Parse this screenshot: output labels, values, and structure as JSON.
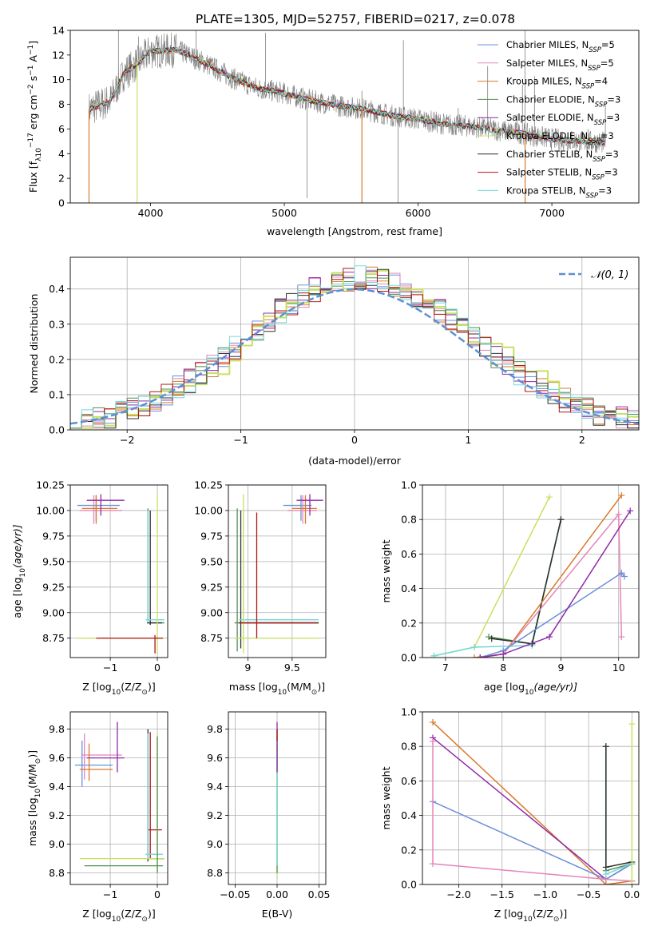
{
  "title": "PLATE=1305, MJD=52757, FIBERID=0217, z=0.078",
  "colors": {
    "chab_miles": "#6a8fd8",
    "salp_miles": "#e585b8",
    "krou_miles": "#d97a2a",
    "chab_elodie": "#4f8f4f",
    "salp_elodie": "#8e2aa8",
    "krou_elodie": "#c8e063",
    "chab_stelib": "#2f2f2f",
    "salp_stelib": "#b01515",
    "krou_stelib": "#72d8d8",
    "obs": "#808080",
    "normal": "#5b8fd6"
  },
  "legend_labels": [
    {
      "text": "Chabrier MILES, N",
      "sub": "SSP",
      "tail": "=5"
    },
    {
      "text": "Salpeter MILES, N",
      "sub": "SSP",
      "tail": "=5"
    },
    {
      "text": "Kroupa MILES, N",
      "sub": "SSP",
      "tail": "=4"
    },
    {
      "text": "Chabrier ELODIE, N",
      "sub": "SSP",
      "tail": "=3"
    },
    {
      "text": "Salpeter ELODIE, N",
      "sub": "SSP",
      "tail": "=3"
    },
    {
      "text": "Kroupa ELODIE, N",
      "sub": "SSP",
      "tail": "=3"
    },
    {
      "text": "Chabrier STELIB, N",
      "sub": "SSP",
      "tail": "=3"
    },
    {
      "text": "Salpeter STELIB, N",
      "sub": "SSP",
      "tail": "=3"
    },
    {
      "text": "Kroupa STELIB, N",
      "sub": "SSP",
      "tail": "=3"
    }
  ],
  "normal_legend": "𝒩(0, 1)",
  "chart_data": [
    {
      "id": "spectrum",
      "type": "line",
      "xlabel": "wavelength [Angstrom, rest frame]",
      "ylabel": {
        "a": "Flux [f",
        "b": "λ",
        "c": "10",
        "d": "−17",
        "e": " erg cm",
        "f": "−2",
        "g": " s",
        "h": "−1",
        "i": " A",
        "j": "−1",
        "k": "]"
      },
      "xlim": [
        3400,
        7650
      ],
      "ylim": [
        0,
        14
      ],
      "xticks": [
        4000,
        5000,
        6000,
        7000
      ],
      "yticks": [
        0,
        2,
        4,
        6,
        8,
        10,
        12,
        14
      ],
      "continuum": [
        [
          3540,
          7.6
        ],
        [
          3700,
          8.3
        ],
        [
          3800,
          10.5
        ],
        [
          3900,
          11.3
        ],
        [
          4000,
          12.3
        ],
        [
          4200,
          12.4
        ],
        [
          4400,
          11.4
        ],
        [
          4600,
          10.2
        ],
        [
          4800,
          9.3
        ],
        [
          5000,
          8.9
        ],
        [
          5200,
          8.3
        ],
        [
          5400,
          7.9
        ],
        [
          5600,
          7.6
        ],
        [
          5800,
          7.1
        ],
        [
          6000,
          6.8
        ],
        [
          6200,
          6.4
        ],
        [
          6400,
          6.2
        ],
        [
          6600,
          5.9
        ],
        [
          6800,
          5.6
        ],
        [
          7000,
          5.2
        ],
        [
          7200,
          5.0
        ],
        [
          7400,
          4.9
        ]
      ],
      "noise_amp": 0.9,
      "spikes": [
        [
          3760,
          14
        ],
        [
          3910,
          13.5
        ],
        [
          4100,
          13.1
        ],
        [
          4240,
          12.2
        ],
        [
          4340,
          14
        ],
        [
          4860,
          13.8
        ],
        [
          5170,
          0.4
        ],
        [
          5580,
          9.1
        ],
        [
          5850,
          0
        ],
        [
          5890,
          13.2
        ],
        [
          6300,
          7.7
        ],
        [
          6520,
          11.1
        ],
        [
          6740,
          7.2
        ],
        [
          6780,
          9.6
        ],
        [
          6800,
          14
        ],
        [
          6870,
          10.3
        ],
        [
          7200,
          5.2
        ],
        [
          7270,
          6.0
        ],
        [
          7400,
          8.1
        ]
      ],
      "model_drops": [
        [
          3540,
          "krou_miles"
        ],
        [
          3900,
          "krou_elodie"
        ],
        [
          5580,
          "krou_miles"
        ],
        [
          6800,
          "krou_miles"
        ]
      ]
    },
    {
      "id": "residuals",
      "type": "histogram",
      "xlabel": "(data-model)/error",
      "ylabel": "Normed distribution",
      "xlim": [
        -2.5,
        2.5
      ],
      "ylim": [
        0,
        0.49
      ],
      "xticks": [
        -2,
        -1,
        0,
        1,
        2
      ],
      "yticks": [
        0.0,
        0.1,
        0.2,
        0.3,
        0.4
      ],
      "bin_width": 0.1
    },
    {
      "id": "age_vs_Z",
      "type": "errorbar",
      "xlabel": {
        "a": "Z [log",
        "b": "10",
        "c": "(Z/Z",
        "d": "⊙",
        "e": ")]"
      },
      "ylabel": {
        "a": "age  [log",
        "b": "10",
        "c": "(age/yr)]"
      },
      "xlim": [
        -1.85,
        0.22
      ],
      "ylim": [
        8.56,
        10.25
      ],
      "xticks": [
        -1,
        0
      ],
      "yticks": [
        8.75,
        9.0,
        9.25,
        9.5,
        9.75,
        10.0,
        10.25
      ],
      "ytick_labels": [
        "8.75",
        "9.00",
        "9.25",
        "9.50",
        "9.75",
        "10.00",
        "10.25"
      ],
      "points": [
        {
          "c": "chab_miles",
          "x": -1.3,
          "y": 10.05,
          "xe": [
            -1.7,
            -0.8
          ],
          "ye": [
            9.9,
            10.15
          ]
        },
        {
          "c": "salp_miles",
          "x": -1.35,
          "y": 10.0,
          "xe": [
            -1.65,
            -0.75
          ],
          "ye": [
            9.87,
            10.15
          ]
        },
        {
          "c": "krou_miles",
          "x": -1.3,
          "y": 10.02,
          "xe": [
            -1.6,
            -0.85
          ],
          "ye": [
            9.87,
            10.15
          ]
        },
        {
          "c": "salp_elodie",
          "x": -1.2,
          "y": 10.1,
          "xe": [
            -1.5,
            -0.7
          ],
          "ye": [
            9.95,
            10.16
          ]
        },
        {
          "c": "chab_elodie",
          "x": -0.2,
          "y": 8.9,
          "xe": [
            -0.22,
            0.15
          ],
          "ye": [
            8.9,
            10.02
          ]
        },
        {
          "c": "chab_stelib",
          "x": -0.15,
          "y": 8.9,
          "xe": [
            -0.22,
            0.1
          ],
          "ye": [
            8.88,
            10.0
          ]
        },
        {
          "c": "krou_stelib",
          "x": -0.2,
          "y": 8.93,
          "xe": [
            -0.25,
            0.15
          ],
          "ye": [
            8.9,
            10.0
          ]
        },
        {
          "c": "krou_elodie",
          "x": 0.0,
          "y": 8.75,
          "xe": [
            -1.7,
            0.15
          ],
          "ye": [
            8.6,
            10.16
          ]
        },
        {
          "c": "salp_stelib",
          "x": -0.05,
          "y": 8.75,
          "xe": [
            -1.3,
            0.12
          ],
          "ye": [
            8.6,
            8.78
          ]
        }
      ]
    },
    {
      "id": "age_vs_mass",
      "type": "errorbar",
      "xlabel": {
        "a": "mass [log",
        "b": "10",
        "c": "(M/M",
        "d": "⊙",
        "e": ")]"
      },
      "xlim": [
        8.78,
        9.88
      ],
      "ylim": [
        8.56,
        10.25
      ],
      "xticks": [
        9.0,
        9.5
      ],
      "yticks": [
        8.75,
        9.0,
        9.25,
        9.5,
        9.75,
        10.0,
        10.25
      ],
      "ytick_labels": [
        "8.75",
        "9.00",
        "9.25",
        "9.50",
        "9.75",
        "10.00",
        "10.25"
      ],
      "points": [
        {
          "c": "chab_miles",
          "x": 9.6,
          "y": 10.05,
          "xe": [
            9.4,
            9.72
          ],
          "ye": [
            9.9,
            10.15
          ]
        },
        {
          "c": "salp_miles",
          "x": 9.62,
          "y": 10.0,
          "xe": [
            9.45,
            9.78
          ],
          "ye": [
            9.87,
            10.15
          ]
        },
        {
          "c": "krou_miles",
          "x": 9.65,
          "y": 10.02,
          "xe": [
            9.5,
            9.78
          ],
          "ye": [
            9.87,
            10.15
          ]
        },
        {
          "c": "salp_elodie",
          "x": 9.7,
          "y": 10.1,
          "xe": [
            9.55,
            9.85
          ],
          "ye": [
            9.95,
            10.16
          ]
        },
        {
          "c": "chab_elodie",
          "x": 8.88,
          "y": 8.9,
          "xe": [
            8.85,
            9.8
          ],
          "ye": [
            8.62,
            10.02
          ]
        },
        {
          "c": "chab_stelib",
          "x": 8.92,
          "y": 8.9,
          "xe": [
            8.9,
            9.8
          ],
          "ye": [
            8.65,
            10.0
          ]
        },
        {
          "c": "krou_stelib",
          "x": 8.95,
          "y": 8.93,
          "xe": [
            8.9,
            9.8
          ],
          "ye": [
            8.7,
            10.0
          ]
        },
        {
          "c": "krou_elodie",
          "x": 8.95,
          "y": 8.75,
          "xe": [
            8.85,
            9.8
          ],
          "ye": [
            8.6,
            10.16
          ]
        },
        {
          "c": "salp_stelib",
          "x": 9.1,
          "y": 8.9,
          "xe": [
            8.9,
            9.78
          ],
          "ye": [
            8.75,
            9.98
          ]
        }
      ]
    },
    {
      "id": "weight_vs_age",
      "type": "line",
      "xlabel": {
        "a": "age  [log",
        "b": "10",
        "c": "(age/yr)]"
      },
      "ylabel": "mass weight",
      "xlim": [
        6.6,
        10.35
      ],
      "ylim": [
        0,
        1
      ],
      "xticks": [
        7,
        8,
        9,
        10
      ],
      "yticks": [
        0.0,
        0.2,
        0.4,
        0.6,
        0.8,
        1.0
      ],
      "series": [
        {
          "c": "krou_elodie",
          "x": [
            6.8,
            7.5,
            8.8
          ],
          "y": [
            0.01,
            0.06,
            0.93
          ]
        },
        {
          "c": "krou_stelib",
          "x": [
            6.8,
            7.5,
            8.5,
            9.0
          ],
          "y": [
            0.01,
            0.06,
            0.07,
            0.8
          ]
        },
        {
          "c": "chab_elodie",
          "x": [
            7.75,
            8.5,
            9.0
          ],
          "y": [
            0.12,
            0.08,
            0.8
          ]
        },
        {
          "c": "chab_stelib",
          "x": [
            7.8,
            8.5,
            9.0
          ],
          "y": [
            0.11,
            0.08,
            0.8
          ]
        },
        {
          "c": "krou_miles",
          "x": [
            7.5,
            8.0,
            10.05
          ],
          "y": [
            0.0,
            0.02,
            0.94
          ]
        },
        {
          "c": "salp_miles",
          "x": [
            7.6,
            8.0,
            10.0,
            10.05
          ],
          "y": [
            0.0,
            0.02,
            0.83,
            0.12
          ]
        },
        {
          "c": "chab_miles",
          "x": [
            7.6,
            8.0,
            10.05,
            10.1
          ],
          "y": [
            0.0,
            0.04,
            0.49,
            0.47
          ]
        },
        {
          "c": "salp_elodie",
          "x": [
            7.6,
            8.0,
            8.8,
            10.2
          ],
          "y": [
            0.0,
            0.02,
            0.12,
            0.85
          ]
        }
      ]
    },
    {
      "id": "mass_vs_Z",
      "type": "errorbar",
      "xlabel": {
        "a": "Z [log",
        "b": "10",
        "c": "(Z/Z",
        "d": "⊙",
        "e": ")]"
      },
      "ylabel": {
        "a": "mass [log",
        "b": "10",
        "c": "(M/M",
        "d": "⊙",
        "e": ")]"
      },
      "xlim": [
        -1.85,
        0.22
      ],
      "ylim": [
        8.72,
        9.92
      ],
      "xticks": [
        -1,
        0
      ],
      "yticks": [
        8.8,
        9.0,
        9.2,
        9.4,
        9.6,
        9.8
      ],
      "ytick_labels": [
        "8.8",
        "9.0",
        "9.2",
        "9.4",
        "9.6",
        "9.8"
      ],
      "points": [
        {
          "c": "chab_miles",
          "x": -1.6,
          "y": 9.55,
          "xe": [
            -1.75,
            -0.95
          ],
          "ye": [
            9.4,
            9.72
          ]
        },
        {
          "c": "salp_miles",
          "x": -1.55,
          "y": 9.62,
          "xe": [
            -1.6,
            -0.75
          ],
          "ye": [
            9.45,
            9.77
          ]
        },
        {
          "c": "krou_miles",
          "x": -1.45,
          "y": 9.52,
          "xe": [
            -1.65,
            -0.95
          ],
          "ye": [
            9.44,
            9.7
          ]
        },
        {
          "c": "salp_elodie",
          "x": -0.85,
          "y": 9.6,
          "xe": [
            -1.5,
            -0.7
          ],
          "ye": [
            9.5,
            9.85
          ]
        },
        {
          "c": "salp_stelib",
          "x": -0.15,
          "y": 9.1,
          "xe": [
            -0.2,
            0.1
          ],
          "ye": [
            8.9,
            9.78
          ]
        },
        {
          "c": "chab_stelib",
          "x": -0.2,
          "y": 8.9,
          "xe": [
            -0.22,
            0.15
          ],
          "ye": [
            8.88,
            9.8
          ]
        },
        {
          "c": "krou_stelib",
          "x": -0.2,
          "y": 8.93,
          "xe": [
            -0.25,
            0.12
          ],
          "ye": [
            8.9,
            9.77
          ]
        },
        {
          "c": "krou_elodie",
          "x": 0.0,
          "y": 8.9,
          "xe": [
            -1.65,
            0.15
          ],
          "ye": [
            8.8,
            9.77
          ]
        },
        {
          "c": "chab_elodie",
          "x": 0.0,
          "y": 8.85,
          "xe": [
            -1.55,
            0.12
          ],
          "ye": [
            8.8,
            9.75
          ]
        }
      ]
    },
    {
      "id": "mass_vs_ebv",
      "type": "errorbar",
      "xlabel": "E(B-V)",
      "xlim": [
        -0.058,
        0.058
      ],
      "ylim": [
        8.72,
        9.92
      ],
      "xticks": [
        -0.05,
        0.0,
        0.05
      ],
      "xtick_labels": [
        "−0.05",
        "0.00",
        "0.05"
      ],
      "yticks": [
        8.8,
        9.0,
        9.2,
        9.4,
        9.6,
        9.8
      ],
      "ytick_labels": [
        "8.8",
        "9.0",
        "9.2",
        "9.4",
        "9.6",
        "9.8"
      ],
      "points": [
        {
          "c": "krou_elodie",
          "x": 0.0,
          "y": 8.95,
          "xe": [
            0,
            0
          ],
          "ye": [
            8.78,
            9.75
          ]
        },
        {
          "c": "chab_elodie",
          "x": 0.0,
          "y": 8.95,
          "xe": [
            0,
            0
          ],
          "ye": [
            8.8,
            9.8
          ]
        },
        {
          "c": "krou_stelib",
          "x": 0.0,
          "y": 9.0,
          "xe": [
            0,
            0
          ],
          "ye": [
            8.85,
            9.78
          ]
        },
        {
          "c": "salp_elodie",
          "x": 0.0,
          "y": 9.6,
          "xe": [
            0,
            0
          ],
          "ye": [
            9.5,
            9.85
          ]
        },
        {
          "c": "salp_stelib",
          "x": 0.0,
          "y": 9.75,
          "xe": [
            0,
            0
          ],
          "ye": [
            9.72,
            9.8
          ]
        }
      ]
    },
    {
      "id": "weight_vs_Z",
      "type": "line",
      "xlabel": {
        "a": "Z [log",
        "b": "10",
        "c": "(Z/Z",
        "d": "⊙",
        "e": ")]"
      },
      "ylabel": "mass weight",
      "xlim": [
        -2.42,
        0.08
      ],
      "ylim": [
        0,
        1
      ],
      "xticks": [
        -2.0,
        -1.5,
        -1.0,
        -0.5,
        0.0
      ],
      "xtick_labels": [
        "−2.0",
        "−1.5",
        "−1.0",
        "−0.5",
        "0.0"
      ],
      "yticks": [
        0.0,
        0.2,
        0.4,
        0.6,
        0.8,
        1.0
      ],
      "series": [
        {
          "c": "krou_miles",
          "x": [
            -2.3,
            -0.3,
            0.0
          ],
          "y": [
            0.94,
            0.0,
            0.02
          ]
        },
        {
          "c": "salp_elodie",
          "x": [
            -2.3,
            -0.3,
            0.0
          ],
          "y": [
            0.85,
            0.03,
            0.12
          ]
        },
        {
          "c": "chab_miles",
          "x": [
            -2.3,
            -0.3,
            0.0
          ],
          "y": [
            0.48,
            0.03,
            0.12
          ]
        },
        {
          "c": "salp_miles",
          "x": [
            -2.3,
            -2.3,
            -0.3,
            0.0
          ],
          "y": [
            0.83,
            0.12,
            0.03,
            0.02
          ]
        },
        {
          "c": "chab_elodie",
          "x": [
            -0.3,
            -0.3,
            0.0
          ],
          "y": [
            0.8,
            0.08,
            0.12
          ]
        },
        {
          "c": "krou_stelib",
          "x": [
            -0.3,
            -0.3,
            0.0
          ],
          "y": [
            0.8,
            0.06,
            0.12
          ]
        },
        {
          "c": "chab_stelib",
          "x": [
            -0.3,
            -0.3,
            0.0
          ],
          "y": [
            0.8,
            0.1,
            0.13
          ]
        },
        {
          "c": "krou_elodie",
          "x": [
            0.0,
            0.0
          ],
          "y": [
            0.93,
            0.0
          ]
        }
      ]
    }
  ]
}
